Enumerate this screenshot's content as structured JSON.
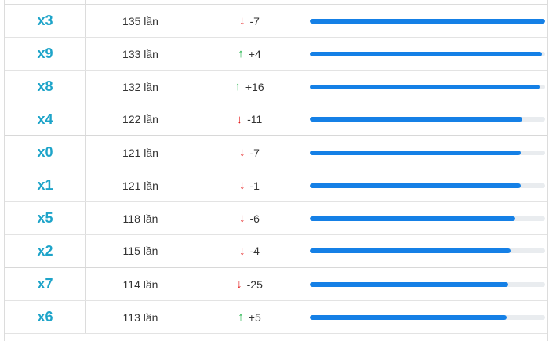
{
  "colors": {
    "number": "#1ea4c9",
    "up": "#21b34a",
    "down": "#e41b1b",
    "bar": "#1580e6",
    "track": "#e9ecef"
  },
  "rows": [
    {
      "number": "x3",
      "count": "135 lần",
      "direction": "down",
      "change": "-7",
      "progress": 1.0
    },
    {
      "number": "x9",
      "count": "133 lần",
      "direction": "up",
      "change": "+4",
      "progress": 0.985
    },
    {
      "number": "x8",
      "count": "132 lần",
      "direction": "up",
      "change": "+16",
      "progress": 0.978
    },
    {
      "number": "x4",
      "count": "122 lần",
      "direction": "down",
      "change": "-11",
      "progress": 0.904
    },
    {
      "number": "x0",
      "count": "121 lần",
      "direction": "down",
      "change": "-7",
      "progress": 0.896
    },
    {
      "number": "x1",
      "count": "121 lần",
      "direction": "down",
      "change": "-1",
      "progress": 0.896
    },
    {
      "number": "x5",
      "count": "118 lần",
      "direction": "down",
      "change": "-6",
      "progress": 0.874
    },
    {
      "number": "x2",
      "count": "115 lần",
      "direction": "down",
      "change": "-4",
      "progress": 0.852
    },
    {
      "number": "x7",
      "count": "114 lần",
      "direction": "down",
      "change": "-25",
      "progress": 0.844
    },
    {
      "number": "x6",
      "count": "113 lần",
      "direction": "up",
      "change": "+5",
      "progress": 0.837
    }
  ]
}
